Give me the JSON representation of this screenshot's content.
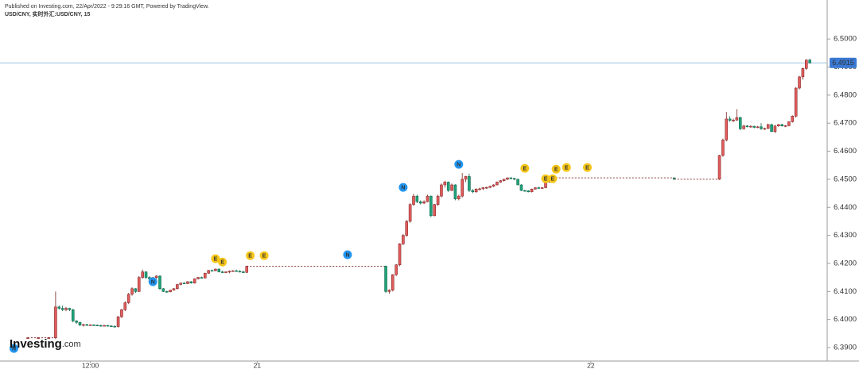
{
  "chart_data": {
    "type": "candlestick",
    "published": "Published on Investing.com, 22/Apr/2022 - 9:29:16 GMT, Powered by TradingView.",
    "title": "USD/CNY, 实时外汇:USD/CNY, 15",
    "logo": {
      "name": "Investing",
      "suffix": ".com"
    },
    "last_value": 6.4915,
    "up_color": "#e05c5c",
    "down_color": "#1fa37a",
    "grid": false,
    "xlim": [
      22,
      260
    ],
    "xticks": [
      {
        "value": 48,
        "label": "12:00"
      },
      {
        "value": 96,
        "label": "21"
      },
      {
        "value": 192,
        "label": "22"
      }
    ],
    "ylim": [
      6.3852,
      6.5139
    ],
    "yticks": [
      {
        "value": 6.39,
        "label": "6.3900"
      },
      {
        "value": 6.4,
        "label": "6.4000"
      },
      {
        "value": 6.41,
        "label": "6.4100"
      },
      {
        "value": 6.42,
        "label": "6.4200"
      },
      {
        "value": 6.43,
        "label": "6.4300"
      },
      {
        "value": 6.44,
        "label": "6.4400"
      },
      {
        "value": 6.45,
        "label": "6.4500"
      },
      {
        "value": 6.46,
        "label": "6.4600"
      },
      {
        "value": 6.47,
        "label": "6.4700"
      },
      {
        "value": 6.48,
        "label": "6.4800"
      },
      {
        "value": 6.49,
        "label": "6.4900"
      },
      {
        "value": 6.5,
        "label": "6.5000"
      }
    ],
    "x": [
      30,
      33,
      36,
      38,
      39,
      40,
      41,
      42,
      43,
      44,
      45,
      46,
      47,
      48,
      49,
      50,
      51,
      52,
      53,
      54,
      55,
      56,
      57,
      58,
      59,
      60,
      61,
      62,
      63,
      64,
      65,
      66,
      67,
      68,
      69,
      70,
      71,
      72,
      73,
      74,
      75,
      76,
      77,
      78,
      79,
      80,
      81,
      82,
      83,
      84,
      85,
      86,
      87,
      88,
      89,
      90,
      91,
      92,
      93,
      133,
      134,
      135,
      136,
      137,
      138,
      139,
      140,
      141,
      142,
      143,
      144,
      145,
      146,
      147,
      148,
      149,
      150,
      151,
      152,
      153,
      154,
      155,
      156,
      157,
      158,
      159,
      160,
      161,
      162,
      163,
      164,
      165,
      166,
      167,
      168,
      169,
      170,
      171,
      172,
      173,
      174,
      175,
      176,
      177,
      178,
      179,
      180,
      181,
      216,
      229,
      230,
      231,
      232,
      233,
      234,
      235,
      236,
      237,
      238,
      239,
      240,
      241,
      242,
      243,
      244,
      245,
      246,
      247,
      248,
      249,
      250,
      251,
      252,
      253,
      254,
      255
    ],
    "ohlc": [
      [
        6.3935,
        6.3937,
        6.3933,
        6.3935
      ],
      [
        6.3935,
        6.3937,
        6.3933,
        6.3935
      ],
      [
        6.3935,
        6.3937,
        6.3933,
        6.3935
      ],
      [
        6.3935,
        6.41,
        6.393,
        6.4045
      ],
      [
        6.4045,
        6.405,
        6.4035,
        6.404
      ],
      [
        6.404,
        6.405,
        6.403,
        6.4035
      ],
      [
        6.4035,
        6.4045,
        6.403,
        6.404
      ],
      [
        6.404,
        6.4042,
        6.403,
        6.4035
      ],
      [
        6.4035,
        6.4038,
        6.399,
        6.3995
      ],
      [
        6.3995,
        6.3998,
        6.3985,
        6.399
      ],
      [
        6.399,
        6.3992,
        6.3977,
        6.398
      ],
      [
        6.398,
        6.3985,
        6.3975,
        6.3982
      ],
      [
        6.3982,
        6.3985,
        6.3978,
        6.398
      ],
      [
        6.398,
        6.3983,
        6.3978,
        6.3981
      ],
      [
        6.3981,
        6.3983,
        6.3978,
        6.398
      ],
      [
        6.398,
        6.3982,
        6.3977,
        6.3979
      ],
      [
        6.3979,
        6.3982,
        6.3976,
        6.3978
      ],
      [
        6.3978,
        6.3981,
        6.3976,
        6.3979
      ],
      [
        6.3979,
        6.3981,
        6.3975,
        6.3977
      ],
      [
        6.3977,
        6.398,
        6.3974,
        6.3976
      ],
      [
        6.3976,
        6.3979,
        6.3972,
        6.3975
      ],
      [
        6.3975,
        6.4012,
        6.3972,
        6.401
      ],
      [
        6.401,
        6.4038,
        6.4005,
        6.4035
      ],
      [
        6.4035,
        6.4065,
        6.403,
        6.406
      ],
      [
        6.406,
        6.4095,
        6.4055,
        6.409
      ],
      [
        6.409,
        6.4115,
        6.4085,
        6.411
      ],
      [
        6.411,
        6.4112,
        6.4095,
        6.41
      ],
      [
        6.41,
        6.4155,
        6.4098,
        6.415
      ],
      [
        6.415,
        6.4178,
        6.4145,
        6.417
      ],
      [
        6.417,
        6.4172,
        6.4145,
        6.415
      ],
      [
        6.415,
        6.4155,
        6.414,
        6.4145
      ],
      [
        6.4145,
        6.4152,
        6.414,
        6.415
      ],
      [
        6.415,
        6.4158,
        6.4145,
        6.4155
      ],
      [
        6.4155,
        6.4158,
        6.4105,
        6.411
      ],
      [
        6.411,
        6.4112,
        6.4098,
        6.41
      ],
      [
        6.41,
        6.4103,
        6.4096,
        6.4099
      ],
      [
        6.4099,
        6.4106,
        6.4097,
        6.4105
      ],
      [
        6.4105,
        6.4112,
        6.4103,
        6.411
      ],
      [
        6.411,
        6.4127,
        6.4108,
        6.4125
      ],
      [
        6.4125,
        6.4132,
        6.4122,
        6.413
      ],
      [
        6.413,
        6.4133,
        6.4126,
        6.4128
      ],
      [
        6.4128,
        6.4137,
        6.4126,
        6.4135
      ],
      [
        6.4135,
        6.4137,
        6.4128,
        6.413
      ],
      [
        6.413,
        6.4147,
        6.4128,
        6.4145
      ],
      [
        6.4145,
        6.4152,
        6.4143,
        6.415
      ],
      [
        6.415,
        6.4153,
        6.4146,
        6.4148
      ],
      [
        6.4148,
        6.4167,
        6.4146,
        6.4165
      ],
      [
        6.4165,
        6.4177,
        6.4163,
        6.4175
      ],
      [
        6.4175,
        6.4178,
        6.4172,
        6.4174
      ],
      [
        6.4174,
        6.4182,
        6.4172,
        6.418
      ],
      [
        6.418,
        6.4182,
        6.4168,
        6.417
      ],
      [
        6.417,
        6.4174,
        6.4166,
        6.4168
      ],
      [
        6.4168,
        6.4172,
        6.4166,
        6.417
      ],
      [
        6.417,
        6.4175,
        6.4165,
        6.4172
      ],
      [
        6.4172,
        6.4176,
        6.417,
        6.4174
      ],
      [
        6.4174,
        6.4178,
        6.417,
        6.4172
      ],
      [
        6.4172,
        6.4176,
        6.4168,
        6.417
      ],
      [
        6.417,
        6.4174,
        6.4166,
        6.4168
      ],
      [
        6.4168,
        6.4192,
        6.4166,
        6.419
      ],
      [
        6.419,
        6.4192,
        6.4095,
        6.41
      ],
      [
        6.41,
        6.4108,
        6.4092,
        6.4105
      ],
      [
        6.4105,
        6.4162,
        6.41,
        6.416
      ],
      [
        6.416,
        6.4198,
        6.4155,
        6.4195
      ],
      [
        6.4195,
        6.4272,
        6.419,
        6.427
      ],
      [
        6.427,
        6.4305,
        6.4265,
        6.43
      ],
      [
        6.43,
        6.4355,
        6.4295,
        6.435
      ],
      [
        6.435,
        6.4415,
        6.4345,
        6.441
      ],
      [
        6.441,
        6.4448,
        6.4405,
        6.444
      ],
      [
        6.444,
        6.4445,
        6.4415,
        6.442
      ],
      [
        6.442,
        6.4425,
        6.441,
        6.4415
      ],
      [
        6.4415,
        6.4425,
        6.4412,
        6.442
      ],
      [
        6.442,
        6.4445,
        6.4418,
        6.444
      ],
      [
        6.444,
        6.4442,
        6.4365,
        6.437
      ],
      [
        6.437,
        6.4412,
        6.4368,
        6.441
      ],
      [
        6.441,
        6.4445,
        6.4405,
        6.444
      ],
      [
        6.444,
        6.4485,
        6.4435,
        6.448
      ],
      [
        6.448,
        6.4495,
        6.447,
        6.449
      ],
      [
        6.449,
        6.4492,
        6.4455,
        6.446
      ],
      [
        6.446,
        6.4485,
        6.4458,
        6.448
      ],
      [
        6.448,
        6.4482,
        6.4425,
        6.443
      ],
      [
        6.443,
        6.4445,
        6.4425,
        6.444
      ],
      [
        6.444,
        6.4522,
        6.4435,
        6.45
      ],
      [
        6.45,
        6.4512,
        6.449,
        6.451
      ],
      [
        6.451,
        6.452,
        6.4455,
        6.446
      ],
      [
        6.446,
        6.4465,
        6.445,
        6.4455
      ],
      [
        6.4455,
        6.4468,
        6.4452,
        6.4465
      ],
      [
        6.4465,
        6.447,
        6.446,
        6.4466
      ],
      [
        6.4466,
        6.4472,
        6.4462,
        6.447
      ],
      [
        6.447,
        6.4474,
        6.4466,
        6.4471
      ],
      [
        6.4471,
        6.4477,
        6.4468,
        6.4475
      ],
      [
        6.4475,
        6.4482,
        6.4472,
        6.448
      ],
      [
        6.448,
        6.4492,
        6.4478,
        6.449
      ],
      [
        6.449,
        6.4497,
        6.4487,
        6.4495
      ],
      [
        6.4495,
        6.4502,
        6.4492,
        6.45
      ],
      [
        6.45,
        6.4507,
        6.4497,
        6.4505
      ],
      [
        6.4505,
        6.4508,
        6.45,
        6.4503
      ],
      [
        6.4503,
        6.4505,
        6.4497,
        6.45
      ],
      [
        6.45,
        6.4502,
        6.4478,
        6.448
      ],
      [
        6.448,
        6.4482,
        6.4458,
        6.446
      ],
      [
        6.446,
        6.4463,
        6.4456,
        6.4459
      ],
      [
        6.4459,
        6.4461,
        6.4453,
        6.4455
      ],
      [
        6.4455,
        6.4467,
        6.4453,
        6.4465
      ],
      [
        6.4465,
        6.4472,
        6.4463,
        6.447
      ],
      [
        6.447,
        6.4473,
        6.4467,
        6.4469
      ],
      [
        6.4469,
        6.4472,
        6.4466,
        6.447
      ],
      [
        6.447,
        6.4492,
        6.4468,
        6.449
      ],
      [
        6.449,
        6.4502,
        6.4488,
        6.45
      ],
      [
        6.45,
        6.4507,
        6.4498,
        6.4505
      ],
      [
        6.4505,
        6.4506,
        6.4499,
        6.45
      ],
      [
        6.45,
        6.4587,
        6.4498,
        6.4585
      ],
      [
        6.4585,
        6.4645,
        6.458,
        6.464
      ],
      [
        6.464,
        6.474,
        6.4635,
        6.4715
      ],
      [
        6.4715,
        6.4725,
        6.4705,
        6.471
      ],
      [
        6.471,
        6.4716,
        6.4704,
        6.4711
      ],
      [
        6.4711,
        6.475,
        6.4708,
        6.472
      ],
      [
        6.472,
        6.4723,
        6.4675,
        6.468
      ],
      [
        6.468,
        6.4694,
        6.4677,
        6.469
      ],
      [
        6.469,
        6.4693,
        6.4685,
        6.4688
      ],
      [
        6.4688,
        6.4692,
        6.4684,
        6.4689
      ],
      [
        6.4689,
        6.4691,
        6.4682,
        6.4685
      ],
      [
        6.4685,
        6.469,
        6.4682,
        6.4687
      ],
      [
        6.4687,
        6.47,
        6.4676,
        6.468
      ],
      [
        6.468,
        6.4684,
        6.4676,
        6.4681
      ],
      [
        6.4681,
        6.4698,
        6.4679,
        6.4695
      ],
      [
        6.4695,
        6.4698,
        6.4668,
        6.467
      ],
      [
        6.467,
        6.4693,
        6.4665,
        6.469
      ],
      [
        6.469,
        6.4697,
        6.4687,
        6.4695
      ],
      [
        6.4695,
        6.4698,
        6.4688,
        6.469
      ],
      [
        6.469,
        6.4693,
        6.4686,
        6.4691
      ],
      [
        6.4691,
        6.4707,
        6.4689,
        6.4705
      ],
      [
        6.4705,
        6.4728,
        6.4702,
        6.4725
      ],
      [
        6.4725,
        6.4828,
        6.472,
        6.4825
      ],
      [
        6.4825,
        6.4868,
        6.482,
        6.4865
      ],
      [
        6.4865,
        6.4898,
        6.4855,
        6.4895
      ],
      [
        6.4895,
        6.4928,
        6.489,
        6.4925
      ],
      [
        6.4925,
        6.493,
        6.4912,
        6.4915
      ]
    ],
    "event_colors": {
      "N": "#2196f3",
      "E": "#f5c518"
    },
    "events": [
      {
        "x": 26,
        "y": 6.3897,
        "label": "N"
      },
      {
        "x": 66,
        "y": 6.4135,
        "label": "N"
      },
      {
        "x": 84,
        "y": 6.4217,
        "label": "E"
      },
      {
        "x": 86,
        "y": 6.4205,
        "label": "E"
      },
      {
        "x": 94,
        "y": 6.4228,
        "label": "E"
      },
      {
        "x": 98,
        "y": 6.4228,
        "label": "E"
      },
      {
        "x": 122,
        "y": 6.4231,
        "label": "N"
      },
      {
        "x": 138,
        "y": 6.4471,
        "label": "N"
      },
      {
        "x": 154,
        "y": 6.4553,
        "label": "N"
      },
      {
        "x": 173,
        "y": 6.4539,
        "label": "E"
      },
      {
        "x": 179,
        "y": 6.4502,
        "label": "E"
      },
      {
        "x": 181,
        "y": 6.4502,
        "label": "E"
      },
      {
        "x": 182,
        "y": 6.4536,
        "label": "E"
      },
      {
        "x": 185,
        "y": 6.4542,
        "label": "E"
      },
      {
        "x": 191,
        "y": 6.4542,
        "label": "E"
      }
    ]
  }
}
